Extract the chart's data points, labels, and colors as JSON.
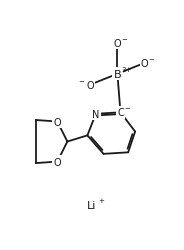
{
  "bg_color": "#ffffff",
  "line_color": "#1a1a1a",
  "text_color": "#1a1a1a",
  "lw": 1.3,
  "fontsize": 7,
  "superscript_fontsize": 5,
  "figsize": [
    1.84,
    2.51
  ],
  "dpi": 100,
  "boron_text": "B",
  "boron_super": "3+",
  "n_text": "N",
  "c_minus": "C",
  "minus": "−",
  "plus": "+",
  "li_text": "Li"
}
